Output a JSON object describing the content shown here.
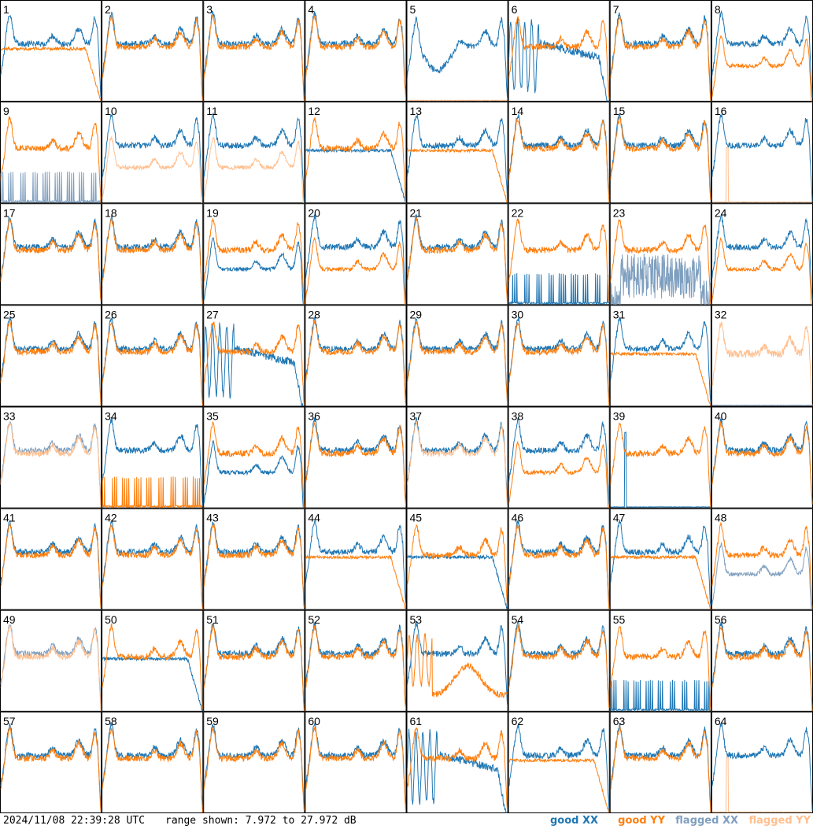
{
  "chart_data": {
    "type": "line",
    "layout": "small-multiples",
    "rows": 8,
    "cols": 8,
    "panels": [
      {
        "id": "1",
        "mode": "xx_dips_yy_rolloff"
      },
      {
        "id": "2",
        "mode": "normal"
      },
      {
        "id": "3",
        "mode": "normal"
      },
      {
        "id": "4",
        "mode": "normal"
      },
      {
        "id": "5",
        "mode": "xx_dip_wide_yy_zero"
      },
      {
        "id": "6",
        "mode": "xx_noisy_decay"
      },
      {
        "id": "7",
        "mode": "normal"
      },
      {
        "id": "8",
        "mode": "yy_low_flat"
      },
      {
        "id": "9",
        "mode": "xx_flagged_spikes"
      },
      {
        "id": "10",
        "mode": "yy_flagged_low"
      },
      {
        "id": "11",
        "mode": "yy_flagged_low"
      },
      {
        "id": "12",
        "mode": "xx_noisy_rolloff"
      },
      {
        "id": "13",
        "mode": "yy_noisy_rolloff"
      },
      {
        "id": "14",
        "mode": "normal"
      },
      {
        "id": "15",
        "mode": "normal"
      },
      {
        "id": "16",
        "mode": "yy_flagged_spike"
      },
      {
        "id": "17",
        "mode": "normal"
      },
      {
        "id": "18",
        "mode": "normal"
      },
      {
        "id": "19",
        "mode": "xx_low"
      },
      {
        "id": "20",
        "mode": "yy_low"
      },
      {
        "id": "21",
        "mode": "normal"
      },
      {
        "id": "22",
        "mode": "xx_zero_spikes"
      },
      {
        "id": "23",
        "mode": "xx_flagged_noise"
      },
      {
        "id": "24",
        "mode": "yy_low"
      },
      {
        "id": "25",
        "mode": "normal"
      },
      {
        "id": "26",
        "mode": "normal"
      },
      {
        "id": "27",
        "mode": "xx_noisy_decay"
      },
      {
        "id": "28",
        "mode": "normal"
      },
      {
        "id": "29",
        "mode": "normal"
      },
      {
        "id": "30",
        "mode": "normal"
      },
      {
        "id": "31",
        "mode": "yy_low_rolloff"
      },
      {
        "id": "32",
        "mode": "yy_flagged_only"
      },
      {
        "id": "33",
        "mode": "flagged_both"
      },
      {
        "id": "34",
        "mode": "yy_zero_spikes"
      },
      {
        "id": "35",
        "mode": "xx_low"
      },
      {
        "id": "36",
        "mode": "normal"
      },
      {
        "id": "37",
        "mode": "yy_flagged_overlay"
      },
      {
        "id": "38",
        "mode": "yy_low"
      },
      {
        "id": "39",
        "mode": "xx_zero_spike"
      },
      {
        "id": "40",
        "mode": "normal"
      },
      {
        "id": "41",
        "mode": "normal"
      },
      {
        "id": "42",
        "mode": "normal"
      },
      {
        "id": "43",
        "mode": "normal"
      },
      {
        "id": "44",
        "mode": "yy_low_rolloff"
      },
      {
        "id": "45",
        "mode": "xx_low_rolloff"
      },
      {
        "id": "46",
        "mode": "normal"
      },
      {
        "id": "47",
        "mode": "yy_low_rolloff"
      },
      {
        "id": "48",
        "mode": "xx_flagged_low"
      },
      {
        "id": "49",
        "mode": "flagged_both"
      },
      {
        "id": "50",
        "mode": "xx_low_rolloff"
      },
      {
        "id": "51",
        "mode": "normal"
      },
      {
        "id": "52",
        "mode": "normal"
      },
      {
        "id": "53",
        "mode": "yy_noisy_hump"
      },
      {
        "id": "54",
        "mode": "normal"
      },
      {
        "id": "55",
        "mode": "xx_zero_spikes"
      },
      {
        "id": "56",
        "mode": "normal"
      },
      {
        "id": "57",
        "mode": "normal"
      },
      {
        "id": "58",
        "mode": "normal"
      },
      {
        "id": "59",
        "mode": "normal"
      },
      {
        "id": "60",
        "mode": "normal"
      },
      {
        "id": "61",
        "mode": "xx_noisy_decay"
      },
      {
        "id": "62",
        "mode": "yy_noisy_rolloff"
      },
      {
        "id": "63",
        "mode": "normal"
      },
      {
        "id": "64",
        "mode": "yy_flagged_spike"
      }
    ],
    "y_range_db": [
      7.972,
      27.972
    ],
    "colors": {
      "good_xx": "#1f77b4",
      "good_yy": "#ff7f0e",
      "flagged_xx": "#7f9fbf",
      "flagged_yy": "#ffbf8f",
      "grid": "#000000"
    }
  },
  "footer": {
    "timestamp": "2024/11/08 22:39:28 UTC",
    "range": "range shown: 7.972 to 27.972 dB"
  },
  "legend": {
    "good_xx": "good XX",
    "good_yy": "good YY",
    "flagged_xx": "flagged XX",
    "flagged_yy": "flagged YY"
  }
}
